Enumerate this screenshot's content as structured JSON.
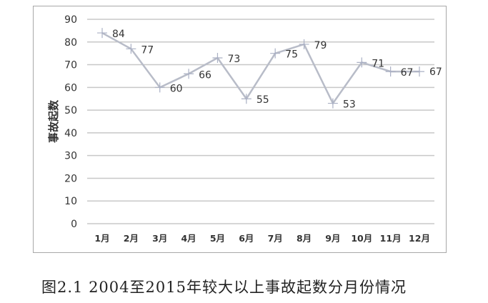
{
  "chart_data": {
    "type": "line",
    "title": "",
    "xlabel": "",
    "ylabel": "事故起数",
    "categories": [
      "1月",
      "2月",
      "3月",
      "4月",
      "5月",
      "6月",
      "7月",
      "8月",
      "9月",
      "10月",
      "11月",
      "12月"
    ],
    "values": [
      84,
      77,
      60,
      66,
      73,
      55,
      75,
      79,
      53,
      71,
      67,
      67
    ],
    "ylim": [
      0,
      90
    ],
    "yticks": [
      0,
      10,
      20,
      30,
      40,
      50,
      60,
      70,
      80,
      90
    ],
    "grid": true,
    "legend": "none",
    "line_color": "#b8bcc8",
    "marker": "plus"
  },
  "caption": "图2.1 2004至2015年较大以上事故起数分月份情况"
}
